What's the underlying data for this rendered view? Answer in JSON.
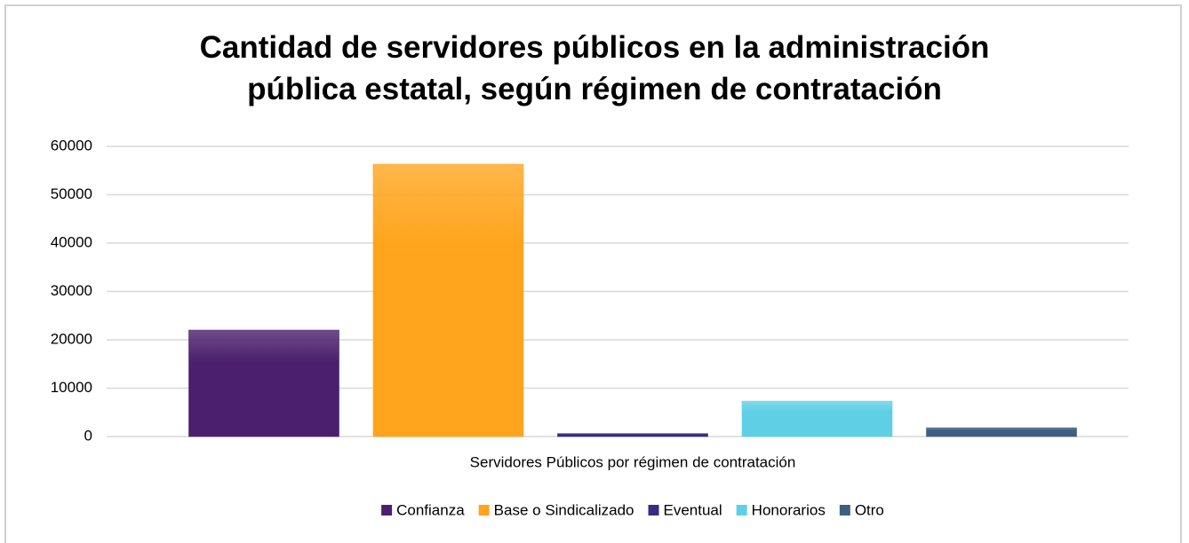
{
  "chart_data": {
    "type": "bar",
    "title": "Cantidad de servidores públicos en la administración pública estatal, según régimen de contratación",
    "categories": [
      "Servidores Públicos por régimen de contratación"
    ],
    "series": [
      {
        "name": "Confianza",
        "color": "#4b1f6e",
        "values": [
          22000
        ]
      },
      {
        "name": "Base o Sindicalizado",
        "color": "#ffa41c",
        "values": [
          56300
        ]
      },
      {
        "name": "Eventual",
        "color": "#3a2b7c",
        "values": [
          600
        ]
      },
      {
        "name": "Honorarios",
        "color": "#5fcfe6",
        "values": [
          7300
        ]
      },
      {
        "name": "Otro",
        "color": "#3e5f82",
        "values": [
          1800
        ]
      }
    ],
    "ylim": [
      0,
      60000
    ],
    "yticks": [
      0,
      10000,
      20000,
      30000,
      40000,
      50000,
      60000
    ],
    "grid": true,
    "legend": "bottom"
  }
}
